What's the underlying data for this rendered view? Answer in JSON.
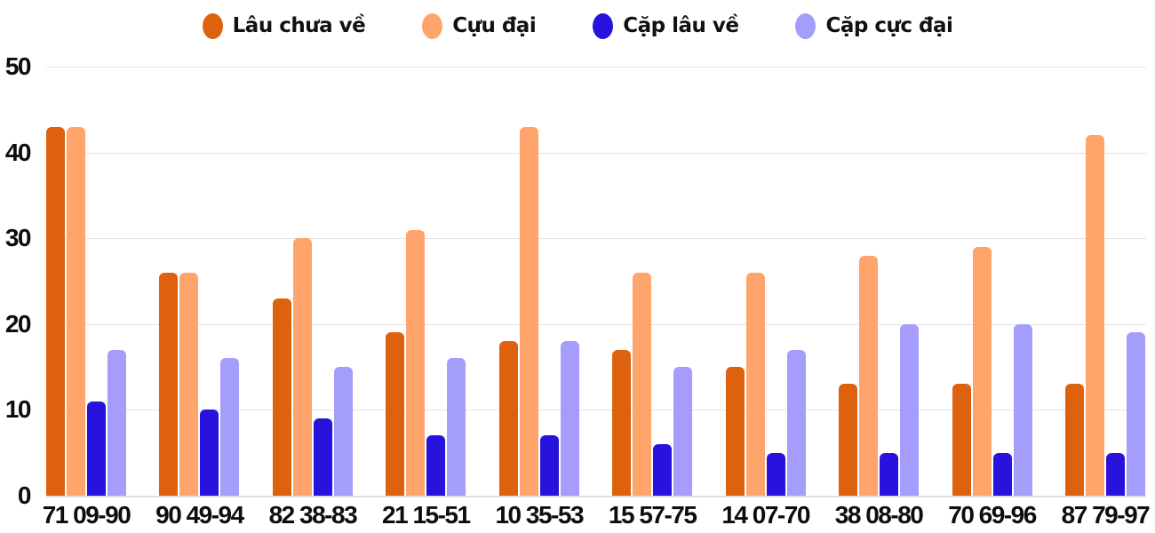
{
  "chart_data": {
    "type": "bar",
    "title": "",
    "background": "#FFFFFF",
    "grid": true,
    "gridline_color": "#E3E3E3",
    "baseline_color": "#E0E0E0",
    "axis_text_color": "#0D0D0D",
    "legend_position": "top",
    "ylim": [
      0,
      50
    ],
    "yticks": [
      0,
      10,
      20,
      30,
      40,
      50
    ],
    "categories": [
      "71 09-90",
      "90 49-94",
      "82 38-83",
      "21 15-51",
      "10 35-53",
      "15 57-75",
      "14 07-70",
      "38 08-80",
      "70 69-96",
      "87 79-97"
    ],
    "series": [
      {
        "name": "Lâu chưa về",
        "color": "#DE620E",
        "values": [
          43,
          26,
          23,
          19,
          18,
          17,
          15,
          13,
          13,
          13
        ]
      },
      {
        "name": "Cựu đại",
        "color": "#FFA46B",
        "values": [
          43,
          26,
          30,
          31,
          43,
          26,
          26,
          28,
          29,
          42
        ]
      },
      {
        "name": "Cặp lâu về",
        "color": "#2713DB",
        "values": [
          11,
          10,
          9,
          7,
          7,
          6,
          5,
          5,
          5,
          5
        ]
      },
      {
        "name": "Cặp cực đại",
        "color": "#A49DFB",
        "values": [
          17,
          16,
          15,
          16,
          18,
          15,
          17,
          20,
          20,
          19
        ]
      }
    ]
  }
}
